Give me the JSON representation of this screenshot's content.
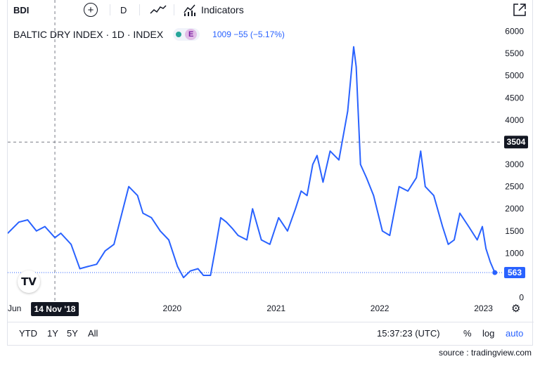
{
  "toolbar": {
    "symbol": "BDI",
    "interval": "D",
    "indicators_label": "Indicators"
  },
  "legend": {
    "title": "BALTIC DRY INDEX · 1D · INDEX",
    "badge": "E",
    "values": "1009  −55 (−5.17%)"
  },
  "crosshair": {
    "date_label": "14 Nov '18",
    "price_label": "3504",
    "price": 3504
  },
  "last_price_label": "563",
  "bottombar": {
    "ranges": [
      "YTD",
      "1Y",
      "5Y",
      "All"
    ],
    "clock": "15:37:23 (UTC)",
    "percent": "%",
    "log": "log",
    "auto": "auto"
  },
  "source": "source : tradingview.com",
  "logo_text": "TV",
  "colors": {
    "line": "#2962ff",
    "price_label_bg": "#131722",
    "last_label_bg": "#2962ff"
  },
  "chart_data": {
    "type": "line",
    "series": [
      {
        "x": [
          "2018-06-01",
          "2018-07-10",
          "2018-08-10",
          "2018-09-10",
          "2018-10-10",
          "2018-11-14",
          "2018-12-05",
          "2019-01-10",
          "2019-02-10",
          "2019-03-10",
          "2019-04-10",
          "2019-05-10",
          "2019-06-10",
          "2019-07-10",
          "2019-08-01",
          "2019-09-01",
          "2019-09-20",
          "2019-10-20",
          "2019-11-20",
          "2019-12-20",
          "2020-01-20",
          "2020-02-10",
          "2020-03-05",
          "2020-04-01",
          "2020-04-20",
          "2020-05-15",
          "2020-06-01",
          "2020-06-20",
          "2020-07-10",
          "2020-08-01",
          "2020-08-20",
          "2020-09-20",
          "2020-10-10",
          "2020-11-10",
          "2020-12-10",
          "2021-01-10",
          "2021-02-10",
          "2021-03-10",
          "2021-03-30",
          "2021-04-20",
          "2021-05-10",
          "2021-05-25",
          "2021-06-15",
          "2021-07-10",
          "2021-08-10",
          "2021-09-10",
          "2021-10-01",
          "2021-10-10",
          "2021-10-25",
          "2021-11-15",
          "2021-12-10",
          "2022-01-10",
          "2022-02-05",
          "2022-03-10",
          "2022-04-10",
          "2022-05-10",
          "2022-05-25",
          "2022-06-10",
          "2022-07-10",
          "2022-08-10",
          "2022-08-30",
          "2022-09-20",
          "2022-10-10",
          "2022-11-10",
          "2022-12-10",
          "2022-12-28",
          "2023-01-10",
          "2023-01-25",
          "2023-02-10"
        ],
        "y": [
          1450,
          1700,
          1750,
          1500,
          1600,
          1350,
          1450,
          1200,
          650,
          700,
          750,
          1050,
          1200,
          1950,
          2500,
          2300,
          1900,
          1800,
          1500,
          1300,
          700,
          450,
          600,
          650,
          500,
          500,
          1100,
          1800,
          1700,
          1550,
          1400,
          1300,
          2000,
          1300,
          1200,
          1800,
          1500,
          2000,
          2400,
          2300,
          3000,
          3200,
          2600,
          3300,
          3100,
          4200,
          5650,
          5200,
          3000,
          2700,
          2300,
          1500,
          1400,
          2500,
          2400,
          2700,
          3300,
          2500,
          2300,
          1600,
          1200,
          1300,
          1900,
          1600,
          1300,
          1600,
          1100,
          800,
          563
        ]
      }
    ],
    "title": "BALTIC DRY INDEX · 1D · INDEX",
    "x_ticks": [
      "Jun",
      "2020",
      "2021",
      "2022",
      "2023"
    ],
    "y_ticks": [
      0,
      500,
      1000,
      1500,
      2000,
      2500,
      3000,
      3500,
      4000,
      4500,
      5000,
      5500,
      6000
    ],
    "ylim": [
      -70,
      6230
    ],
    "xlim": [
      "2018-06-01",
      "2023-02-28"
    ],
    "last_value": 563,
    "grid": false
  }
}
